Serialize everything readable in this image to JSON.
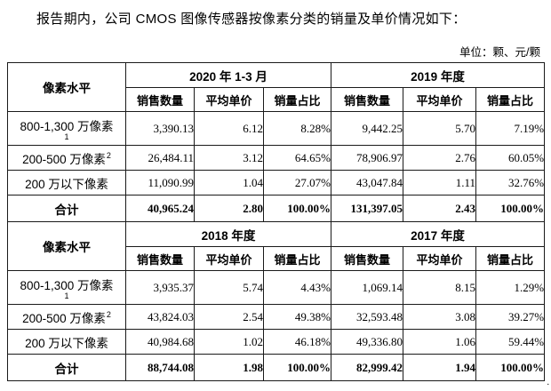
{
  "page": {
    "title": "报告期内，公司 CMOS 图像传感器按像素分类的销量及单价情况如下：",
    "unit_label": "单位：颗、元/颗"
  },
  "table": {
    "corner_header": "像素水平",
    "sub_headers": [
      "销售数量",
      "平均单价",
      "销量占比"
    ],
    "sections": [
      {
        "periods": [
          "2020 年 1-3 月",
          "2019 年度"
        ],
        "rows": [
          {
            "label": "800-1,300 万像素",
            "footnote": "1",
            "footnote_style": "newline",
            "total": false,
            "values": [
              "3,390.13",
              "6.12",
              "8.28%",
              "9,442.25",
              "5.70",
              "7.19%"
            ]
          },
          {
            "label": "200-500 万像素",
            "footnote": "2",
            "footnote_style": "inline",
            "total": false,
            "values": [
              "26,484.11",
              "3.12",
              "64.65%",
              "78,906.97",
              "2.76",
              "60.05%"
            ]
          },
          {
            "label": "200 万以下像素",
            "footnote": "",
            "footnote_style": "none",
            "total": false,
            "values": [
              "11,090.99",
              "1.04",
              "27.07%",
              "43,047.84",
              "1.11",
              "32.76%"
            ]
          },
          {
            "label": "合计",
            "footnote": "",
            "footnote_style": "none",
            "total": true,
            "values": [
              "40,965.24",
              "2.80",
              "100.00%",
              "131,397.05",
              "2.43",
              "100.00%"
            ]
          }
        ]
      },
      {
        "periods": [
          "2018 年度",
          "2017 年度"
        ],
        "rows": [
          {
            "label": "800-1,300 万像素",
            "footnote": "1",
            "footnote_style": "newline",
            "total": false,
            "values": [
              "3,935.37",
              "5.74",
              "4.43%",
              "1,069.14",
              "8.15",
              "1.29%"
            ]
          },
          {
            "label": "200-500 万像素",
            "footnote": "2",
            "footnote_style": "inline",
            "total": false,
            "values": [
              "43,824.03",
              "2.54",
              "49.38%",
              "32,593.48",
              "3.08",
              "39.27%"
            ]
          },
          {
            "label": "200 万以下像素",
            "footnote": "",
            "footnote_style": "none",
            "total": false,
            "values": [
              "40,984.68",
              "1.02",
              "46.18%",
              "49,336.80",
              "1.06",
              "59.44%"
            ]
          },
          {
            "label": "合计",
            "footnote": "",
            "footnote_style": "none",
            "total": true,
            "values": [
              "88,744.08",
              "1.98",
              "100.00%",
              "82,999.42",
              "1.94",
              "100.00%"
            ]
          }
        ]
      }
    ]
  }
}
